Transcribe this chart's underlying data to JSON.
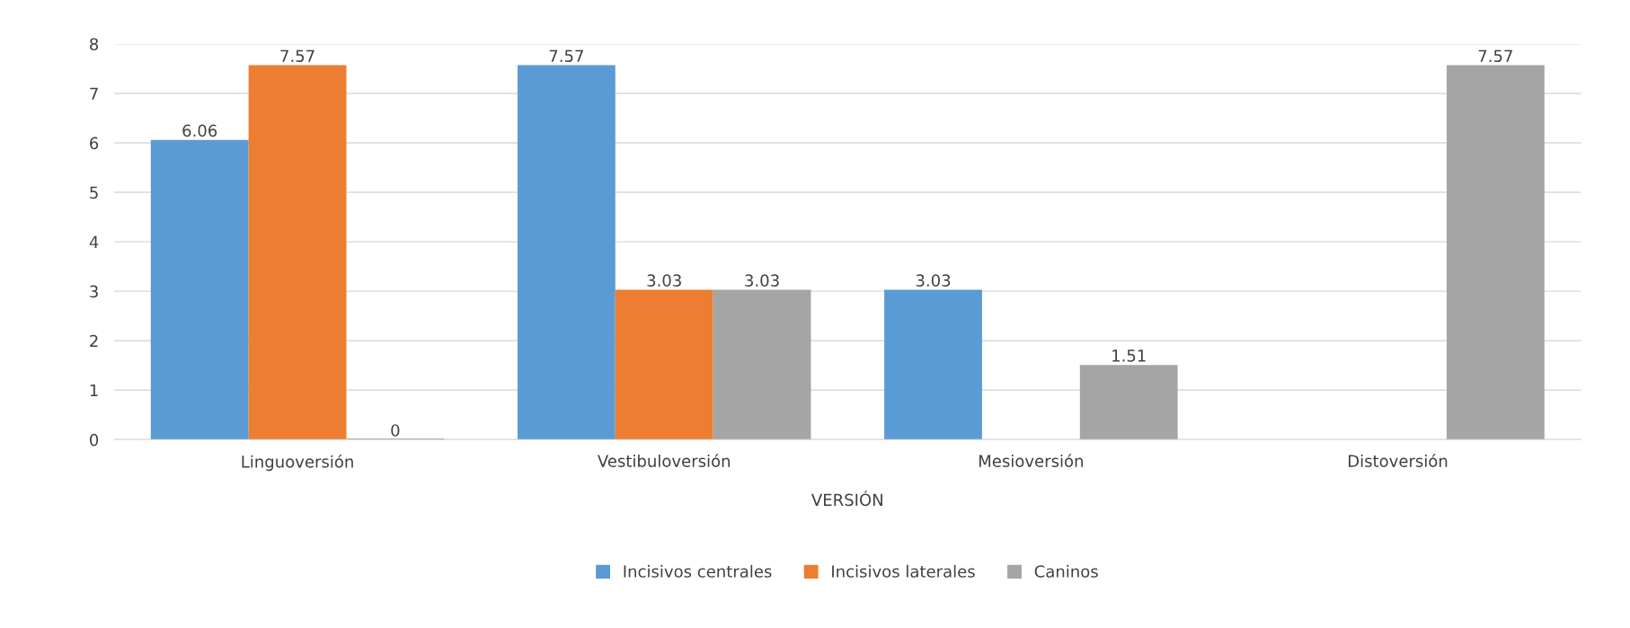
{
  "chart_data": {
    "type": "bar",
    "xlabel": "VERSIÓN",
    "categories": [
      "Linguoversión",
      "Vestibuloversión",
      "Mesioversión",
      "Distoversión"
    ],
    "series": [
      {
        "name": "Incisivos centrales",
        "color": "#5b9bd5",
        "values": [
          6.06,
          7.57,
          3.03,
          null
        ]
      },
      {
        "name": "Incisivos laterales",
        "color": "#ed7d31",
        "values": [
          7.57,
          3.03,
          null,
          null
        ]
      },
      {
        "name": "Caninos",
        "color": "#a5a5a5",
        "values": [
          0,
          3.03,
          1.51,
          7.57
        ]
      }
    ],
    "ylim": [
      0,
      8
    ],
    "yticks": [
      0,
      1,
      2,
      3,
      4,
      5,
      6,
      7,
      8
    ],
    "grid": "y",
    "legend": "bottom",
    "data_labels": true
  }
}
